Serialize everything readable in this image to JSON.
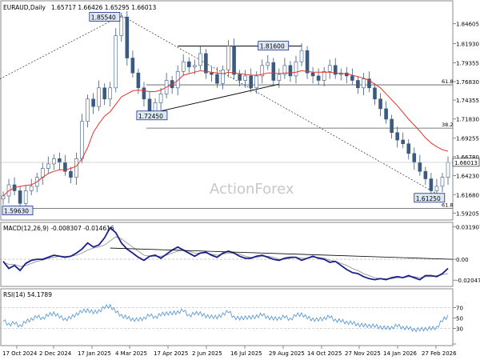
{
  "chart_data": {
    "type": "candlestick",
    "symbol": "EURAUD,Daily",
    "ohlc_text": "1.65717 1.66426 1.65295 1.66013",
    "watermark": "ActionForex",
    "price_panel": {
      "ylim": [
        1.586,
        1.8585
      ],
      "y_ticks": [
        "1.84605",
        "1.81930",
        "1.79355",
        "1.76830",
        "1.74355",
        "1.71830",
        "1.69255",
        "1.66780",
        "1.64230",
        "1.61680",
        "1.59205"
      ],
      "last_price": "1.66013",
      "labels": {
        "high": "1.85540",
        "low_start": "1.59630",
        "swing_low": "1.72450",
        "swing_high": "1.81600",
        "recent_low": "1.61250"
      },
      "fib_levels": [
        {
          "label": "61.8",
          "value": 1.764
        },
        {
          "label": "38.2",
          "value": 1.706
        },
        {
          "label": "61.8",
          "value": 1.5985
        }
      ],
      "close_path": [
        1.615,
        1.63,
        1.622,
        1.605,
        1.622,
        1.628,
        1.64,
        1.652,
        1.658,
        1.665,
        1.66,
        1.648,
        1.64,
        1.665,
        1.715,
        1.745,
        1.735,
        1.76,
        1.745,
        1.76,
        1.83,
        1.855,
        1.8,
        1.78,
        1.76,
        1.745,
        1.728,
        1.74,
        1.752,
        1.77,
        1.76,
        1.782,
        1.795,
        1.788,
        1.79,
        1.806,
        1.78,
        1.778,
        1.766,
        1.784,
        1.816,
        1.778,
        1.77,
        1.776,
        1.76,
        1.776,
        1.79,
        1.794,
        1.77,
        1.778,
        1.79,
        1.776,
        1.795,
        1.81,
        1.78,
        1.776,
        1.77,
        1.782,
        1.79,
        1.778,
        1.78,
        1.776,
        1.77,
        1.76,
        1.772,
        1.76,
        1.745,
        1.732,
        1.718,
        1.7,
        1.69,
        1.685,
        1.672,
        1.66,
        1.648,
        1.638,
        1.622,
        1.628,
        1.64,
        1.66
      ],
      "sma_path": [
        1.615,
        1.622,
        1.626,
        1.628,
        1.629,
        1.63,
        1.634,
        1.64,
        1.645,
        1.648,
        1.65,
        1.65,
        1.652,
        1.655,
        1.665,
        1.68,
        1.7,
        1.712,
        1.722,
        1.728,
        1.738,
        1.748,
        1.752,
        1.756,
        1.757,
        1.756,
        1.755,
        1.755,
        1.757,
        1.761,
        1.764,
        1.77,
        1.777,
        1.779,
        1.781,
        1.783,
        1.782,
        1.781,
        1.78,
        1.779,
        1.781,
        1.78,
        1.779,
        1.778,
        1.777,
        1.777,
        1.778,
        1.78,
        1.78,
        1.779,
        1.78,
        1.78,
        1.781,
        1.783,
        1.782,
        1.781,
        1.781,
        1.781,
        1.781,
        1.78,
        1.779,
        1.779,
        1.777,
        1.775,
        1.773,
        1.77,
        1.765,
        1.76,
        1.752,
        1.744,
        1.736,
        1.727,
        1.718,
        1.71,
        1.702,
        1.693,
        1.686,
        1.681,
        1.677,
        1.675
      ]
    },
    "macd_panel": {
      "label": "MACD(12,26,9) -0.008307 -0.014616",
      "ylim": [
        -0.025,
        0.033
      ],
      "y_ticks": [
        "0.031907",
        "0.00",
        "-0.020479"
      ],
      "macd": [
        -0.002,
        -0.009,
        -0.006,
        -0.011,
        -0.004,
        -0.001,
        0.0,
        0.0,
        0.002,
        0.004,
        0.003,
        0.002,
        0.003,
        0.006,
        0.01,
        0.016,
        0.012,
        0.014,
        0.021,
        0.031,
        0.026,
        0.016,
        0.01,
        0.006,
        0.002,
        -0.001,
        0.003,
        0.004,
        0.001,
        0.005,
        0.009,
        0.012,
        0.009,
        0.006,
        0.003,
        0.006,
        0.007,
        0.004,
        0.002,
        0.006,
        0.008,
        0.006,
        0.003,
        0.001,
        0.001,
        0.003,
        0.004,
        0.002,
        0.0,
        -0.001,
        0.001,
        0.002,
        0.002,
        -0.001,
        0.001,
        0.003,
        0.001,
        0.0,
        -0.003,
        -0.002,
        -0.006,
        -0.01,
        -0.013,
        -0.014,
        -0.017,
        -0.019,
        -0.02,
        -0.019,
        -0.02,
        -0.018,
        -0.017,
        -0.018,
        -0.016,
        -0.018,
        -0.02,
        -0.016,
        -0.016,
        -0.017,
        -0.014,
        -0.009
      ],
      "signal": [
        -0.003,
        -0.005,
        -0.005,
        -0.007,
        -0.006,
        -0.004,
        -0.002,
        -0.001,
        0.001,
        0.002,
        0.003,
        0.003,
        0.003,
        0.004,
        0.006,
        0.009,
        0.011,
        0.012,
        0.014,
        0.018,
        0.022,
        0.02,
        0.016,
        0.012,
        0.008,
        0.004,
        0.003,
        0.003,
        0.003,
        0.004,
        0.006,
        0.008,
        0.009,
        0.008,
        0.006,
        0.006,
        0.006,
        0.005,
        0.004,
        0.005,
        0.006,
        0.006,
        0.005,
        0.003,
        0.002,
        0.002,
        0.003,
        0.003,
        0.002,
        0.0,
        0.0,
        0.001,
        0.002,
        0.001,
        0.001,
        0.002,
        0.002,
        0.001,
        -0.001,
        -0.002,
        -0.004,
        -0.006,
        -0.009,
        -0.011,
        -0.014,
        -0.016,
        -0.018,
        -0.019,
        -0.019,
        -0.019,
        -0.018,
        -0.018,
        -0.017,
        -0.017,
        -0.018,
        -0.017,
        -0.017,
        -0.016,
        -0.015,
        -0.014
      ]
    },
    "rsi_panel": {
      "label": "RSI(14) 54.1789",
      "ylim": [
        0,
        100
      ],
      "y_ticks": [
        "70",
        "50",
        "30",
        "0"
      ],
      "values": [
        45,
        38,
        40,
        35,
        42,
        48,
        52,
        50,
        55,
        60,
        52,
        48,
        50,
        58,
        62,
        66,
        60,
        64,
        70,
        74,
        62,
        55,
        50,
        48,
        46,
        50,
        55,
        52,
        56,
        60,
        58,
        62,
        64,
        55,
        58,
        60,
        52,
        54,
        50,
        58,
        62,
        52,
        48,
        52,
        50,
        54,
        56,
        52,
        48,
        50,
        52,
        48,
        55,
        58,
        50,
        48,
        46,
        50,
        52,
        46,
        44,
        42,
        40,
        38,
        35,
        36,
        34,
        33,
        30,
        32,
        35,
        32,
        30,
        28,
        27,
        30,
        29,
        32,
        45,
        54
      ]
    },
    "x_axis": {
      "labels": [
        "17 Oct 2024",
        "2 Dec 2024",
        "17 Jan 2025",
        "4 Mar 2025",
        "17 Apr 2025",
        "2 Jun 2025",
        "16 Jul 2025",
        "29 Aug 2025",
        "14 Oct 2025",
        "27 Nov 2025",
        "14 Jan 2026",
        "27 Feb 2026"
      ]
    },
    "colors": {
      "candle": "#3a5a80",
      "sma": "#e6332a",
      "macd": "#1a1f8c",
      "signal": "#8a8a8a",
      "rsi": "#4a90d9",
      "label_border": "#1a2a8c",
      "label_bg": "#dde8f5"
    }
  }
}
